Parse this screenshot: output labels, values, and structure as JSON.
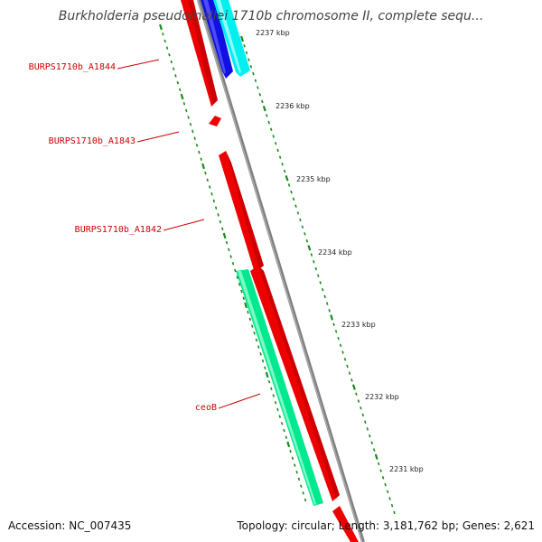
{
  "title": "Burkholderia pseudomallei 1710b chromosome II, complete sequ...",
  "footer": {
    "accession": "Accession: NC_007435",
    "summary": "Topology: circular; Length: 3,181,762 bp; Genes: 2,621"
  },
  "gene_labels": [
    {
      "id": "a1844",
      "text": "BURPS1710b_A1844"
    },
    {
      "id": "a1843",
      "text": "BURPS1710b_A1843"
    },
    {
      "id": "a1842",
      "text": "BURPS1710b_A1842"
    },
    {
      "id": "ceob",
      "text": "ceoB"
    }
  ],
  "kbp_labels": [
    {
      "id": "2237",
      "text": "2237 kbp"
    },
    {
      "id": "2236",
      "text": "2236 kbp"
    },
    {
      "id": "2235",
      "text": "2235 kbp"
    },
    {
      "id": "2234",
      "text": "2234 kbp"
    },
    {
      "id": "2233",
      "text": "2233 kbp"
    },
    {
      "id": "2232",
      "text": "2232 kbp"
    },
    {
      "id": "2231",
      "text": "2231 kbp"
    }
  ],
  "colors": {
    "forward_gene": "#ee0000",
    "reverse_gene_blue": "#1010e0",
    "reverse_gene_cyan": "#00f0f0",
    "reverse_gene_green": "#00e890",
    "backbone": "#888888",
    "tick": "#1a8a1a",
    "label_line": "#cc0000"
  }
}
